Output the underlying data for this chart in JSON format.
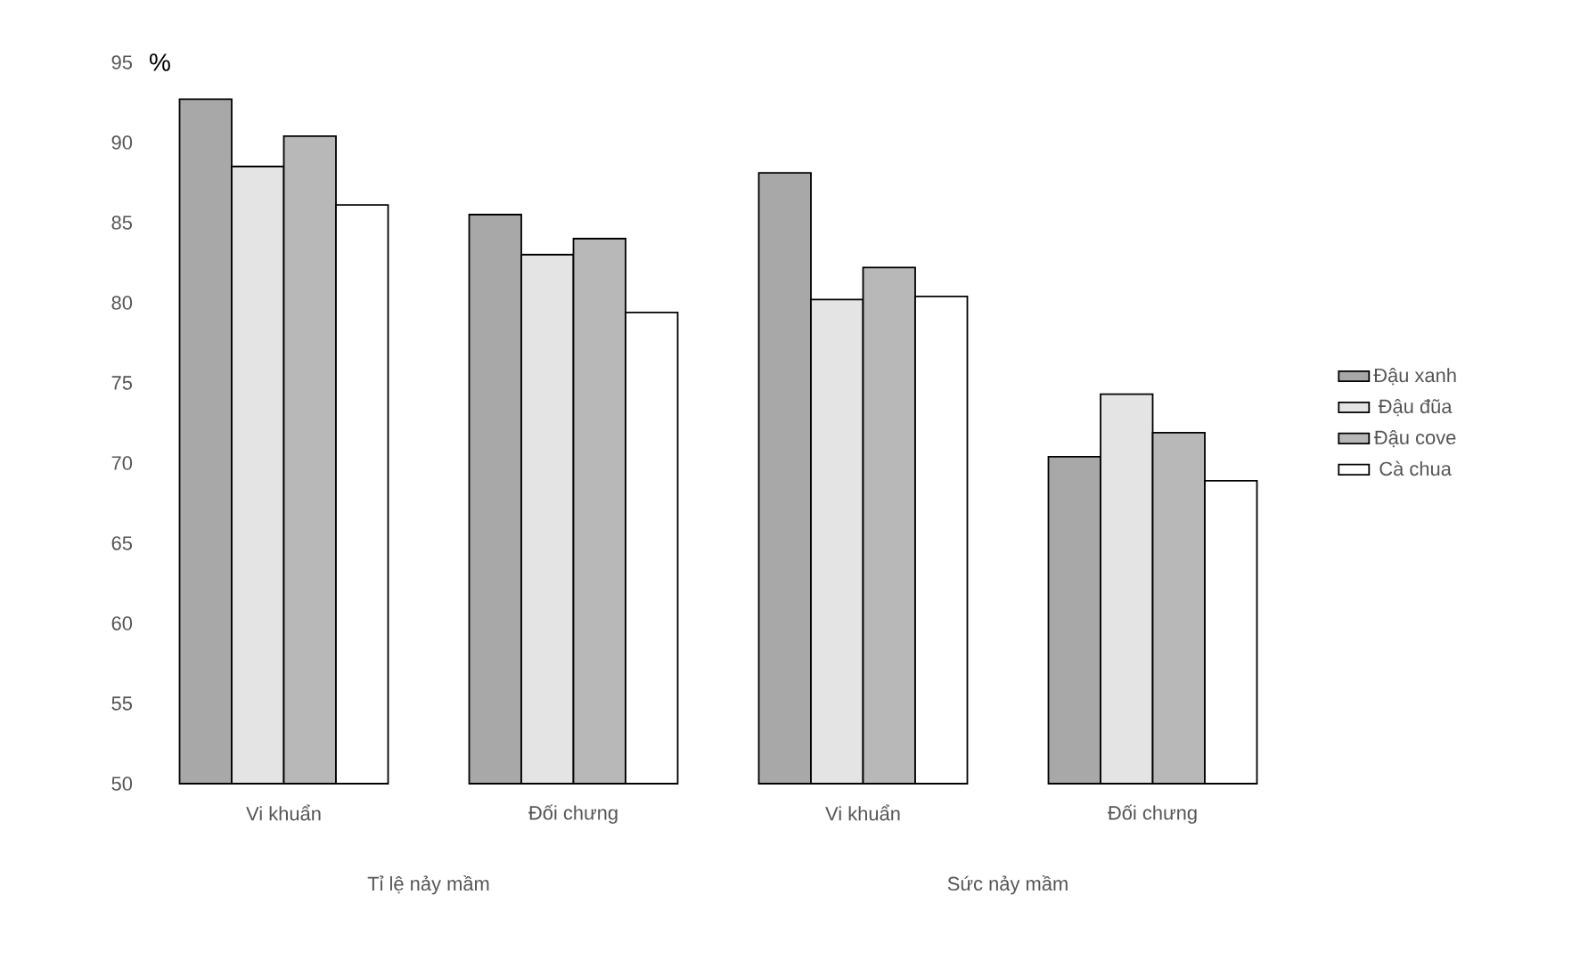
{
  "chart_data": {
    "type": "bar",
    "ylabel": "%",
    "categories": [
      "Vi khuẩn",
      "Đối chưng",
      "Vi khuẩn",
      "Đối chưng"
    ],
    "series": [
      {
        "name": "Đậu xanh",
        "color": "#a8a8a8",
        "values": [
          92.7,
          85.5,
          88.1,
          70.4
        ]
      },
      {
        "name": "Đậu đũa",
        "color": "#e4e4e4",
        "values": [
          88.5,
          83.0,
          80.2,
          74.3
        ]
      },
      {
        "name": "Đậu cove",
        "color": "#b8b8b8",
        "values": [
          90.4,
          84.0,
          82.2,
          71.9
        ]
      },
      {
        "name": "Cà chua",
        "color": "#ffffff",
        "values": [
          86.1,
          79.4,
          80.4,
          68.9
        ]
      }
    ],
    "annotations": [
      "Tỉ lệ nảy mầm",
      "Sức nảy mầm"
    ],
    "ylim": [
      50,
      95
    ],
    "yticks": [
      50,
      55,
      60,
      65,
      70,
      75,
      80,
      85,
      90,
      95
    ],
    "legend": "right"
  }
}
